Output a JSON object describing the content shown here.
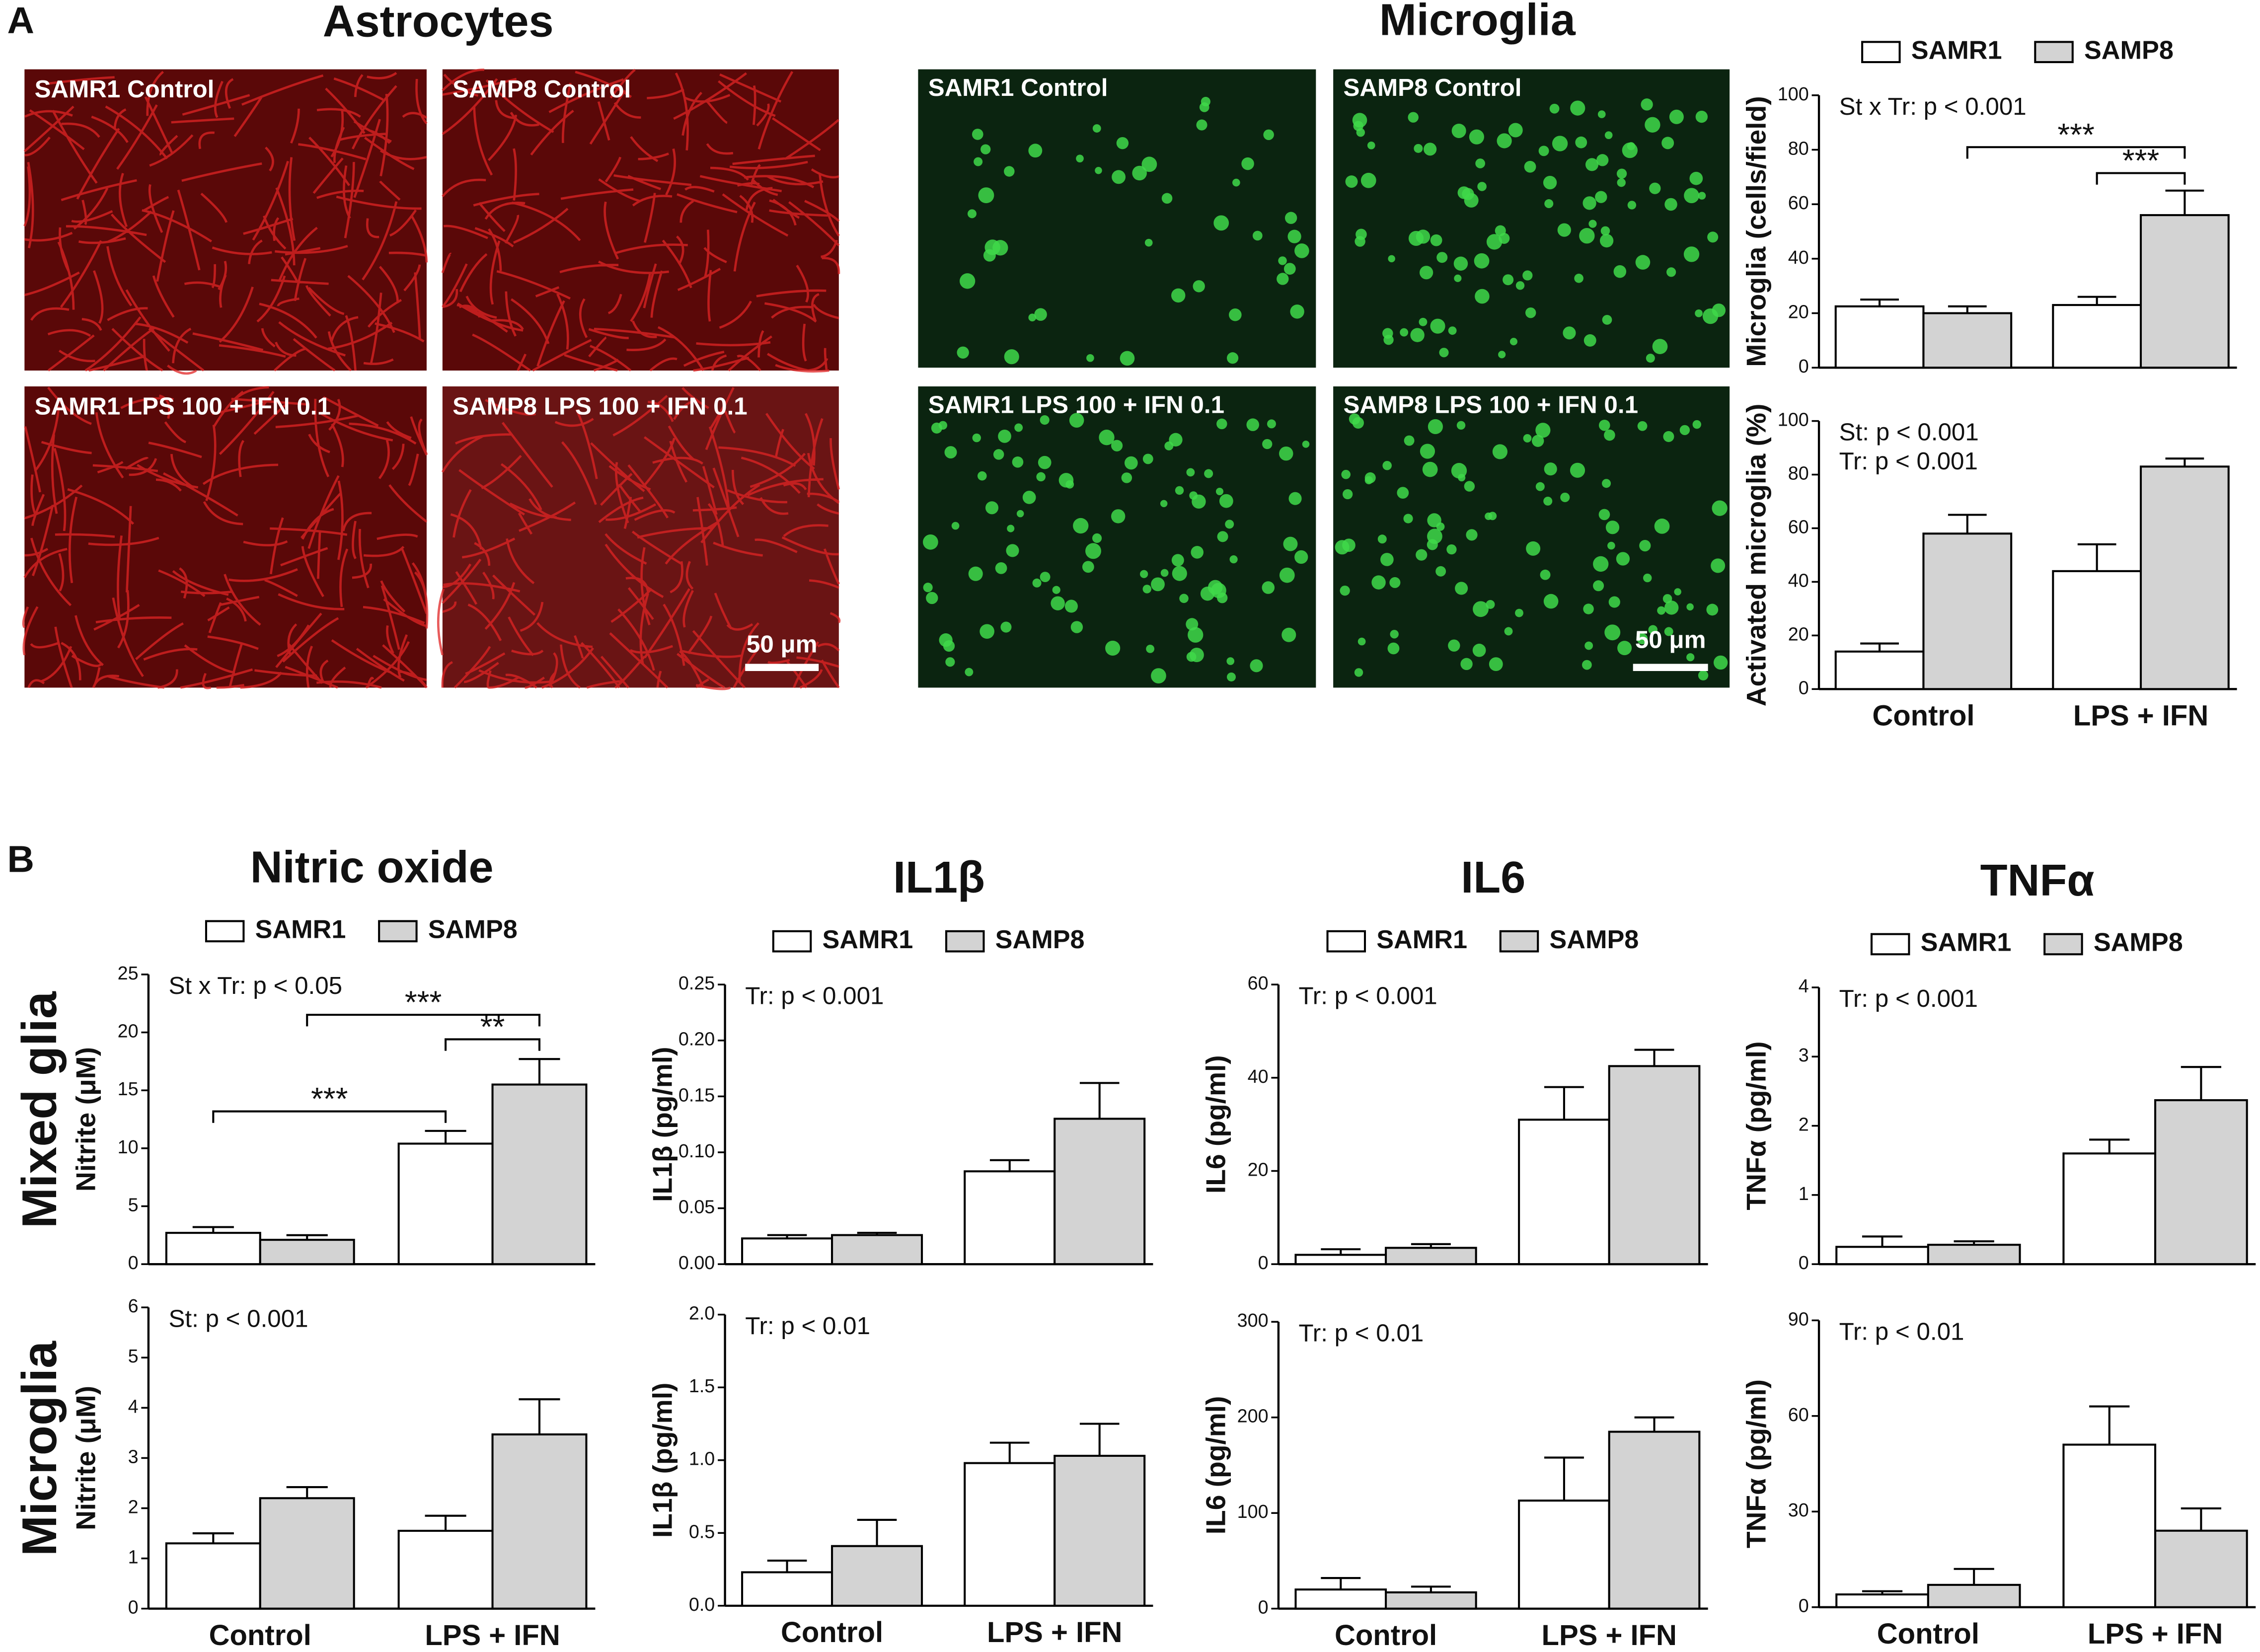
{
  "figure": {
    "panel_a": "A",
    "panel_b": "B",
    "astrocytes_title": "Astrocytes",
    "microglia_title": "Microglia",
    "row_labels": [
      "Mixed glia",
      "Microglia"
    ],
    "astrocyte_images": [
      "SAMR1 Control",
      "SAMP8 Control",
      "SAMR1 LPS 100 + IFN 0.1",
      "SAMP8 LPS 100 + IFN 0.1"
    ],
    "microglia_images": [
      "SAMR1 Control",
      "SAMP8 Control",
      "SAMR1 LPS 100 + IFN 0.1",
      "SAMP8 LPS 100 + IFN 0.1"
    ],
    "scale_bar": "50 μm"
  },
  "chart_data": [
    {
      "type": "bar",
      "ylabel": "Microglia (cells/field)",
      "legend": "top",
      "annotations": [
        "St x Tr: p < 0.001"
      ],
      "significance": [
        "***",
        "***"
      ],
      "categories": [
        null,
        null
      ],
      "series": [
        {
          "name": "SAMR1",
          "color": "#ffffff",
          "values": [
            22.5,
            23
          ],
          "errors": [
            2.5,
            3
          ]
        },
        {
          "name": "SAMP8",
          "color": "#d3d3d3",
          "values": [
            20,
            56
          ],
          "errors": [
            2.5,
            9
          ]
        }
      ],
      "ylim": [
        0,
        100
      ],
      "yticks": [
        0,
        20,
        40,
        60,
        80,
        100
      ]
    },
    {
      "type": "bar",
      "ylabel": "Activated microglia (%)",
      "annotations": [
        "St: p < 0.001",
        "Tr: p < 0.001"
      ],
      "categories": [
        "Control",
        "LPS + IFN"
      ],
      "series": [
        {
          "color": "#ffffff",
          "values": [
            14,
            44
          ],
          "errors": [
            3,
            10
          ]
        },
        {
          "color": "#d3d3d3",
          "values": [
            58,
            83
          ],
          "errors": [
            7,
            3
          ]
        }
      ],
      "ylim": [
        0,
        100
      ],
      "yticks": [
        0,
        20,
        40,
        60,
        80,
        100
      ]
    },
    {
      "type": "bar",
      "title": "Nitric oxide",
      "ylabel": "Nitrite (μM)",
      "legend": "top",
      "annotations": [
        "St x Tr: p < 0.05"
      ],
      "significance": [
        "***",
        "***",
        "**"
      ],
      "categories": [
        null,
        null
      ],
      "series": [
        {
          "name": "SAMR1",
          "color": "#ffffff",
          "values": [
            2.7,
            10.4
          ],
          "errors": [
            0.5,
            1.1
          ]
        },
        {
          "name": "SAMP8",
          "color": "#d3d3d3",
          "values": [
            2.1,
            15.5
          ],
          "errors": [
            0.4,
            2.2
          ]
        }
      ],
      "ylim": [
        0,
        25
      ],
      "yticks": [
        0,
        5,
        10,
        15,
        20,
        25
      ]
    },
    {
      "type": "bar",
      "title": "IL1β",
      "ylabel": "IL1β (pg/ml)",
      "legend": "top",
      "annotations": [
        "Tr: p < 0.001"
      ],
      "categories": [
        null,
        null
      ],
      "series": [
        {
          "name": "SAMR1",
          "color": "#ffffff",
          "values": [
            0.023,
            0.083
          ],
          "errors": [
            0.003,
            0.01
          ]
        },
        {
          "name": "SAMP8",
          "color": "#d3d3d3",
          "values": [
            0.026,
            0.13
          ],
          "errors": [
            0.002,
            0.032
          ]
        }
      ],
      "ylim": [
        0,
        0.25
      ],
      "yticks": [
        {
          "value": 0,
          "label": "0.00"
        },
        0.05,
        {
          "value": 0.1,
          "label": "0.10"
        },
        0.15,
        {
          "value": 0.2,
          "label": "0.20"
        },
        0.25
      ]
    },
    {
      "type": "bar",
      "title": "IL6",
      "ylabel": "IL6 (pg/ml)",
      "legend": "top",
      "annotations": [
        "Tr: p < 0.001"
      ],
      "categories": [
        null,
        null
      ],
      "series": [
        {
          "name": "SAMR1",
          "color": "#ffffff",
          "values": [
            2,
            31
          ],
          "errors": [
            1.2,
            7
          ]
        },
        {
          "name": "SAMP8",
          "color": "#d3d3d3",
          "values": [
            3.5,
            42.5
          ],
          "errors": [
            0.8,
            3.5
          ]
        }
      ],
      "ylim": [
        0,
        60
      ],
      "yticks": [
        0,
        20,
        40,
        60
      ]
    },
    {
      "type": "bar",
      "title": "TNFα",
      "ylabel": "TNFα (pg/ml)",
      "legend": "top",
      "annotations": [
        "Tr: p < 0.001"
      ],
      "categories": [
        null,
        null
      ],
      "series": [
        {
          "name": "SAMR1",
          "color": "#ffffff",
          "values": [
            0.25,
            1.6
          ],
          "errors": [
            0.15,
            0.2
          ]
        },
        {
          "name": "SAMP8",
          "color": "#d3d3d3",
          "values": [
            0.28,
            2.37
          ],
          "errors": [
            0.05,
            0.48
          ]
        }
      ],
      "ylim": [
        0,
        4
      ],
      "yticks": [
        0,
        1,
        2,
        3,
        4
      ]
    },
    {
      "type": "bar",
      "ylabel": "Nitrite (μM)",
      "annotations": [
        "St: p < 0.001"
      ],
      "categories": [
        "Control",
        "LPS + IFN"
      ],
      "series": [
        {
          "color": "#ffffff",
          "values": [
            1.3,
            1.55
          ],
          "errors": [
            0.2,
            0.3
          ]
        },
        {
          "color": "#d3d3d3",
          "values": [
            2.2,
            3.47
          ],
          "errors": [
            0.22,
            0.7
          ]
        }
      ],
      "ylim": [
        0,
        6
      ],
      "yticks": [
        0,
        1,
        2,
        3,
        4,
        5,
        6
      ]
    },
    {
      "type": "bar",
      "ylabel": "IL1β (pg/ml)",
      "annotations": [
        "Tr: p < 0.01"
      ],
      "categories": [
        "Control",
        "LPS + IFN"
      ],
      "series": [
        {
          "color": "#ffffff",
          "values": [
            0.23,
            0.98
          ],
          "errors": [
            0.08,
            0.14
          ]
        },
        {
          "color": "#d3d3d3",
          "values": [
            0.41,
            1.03
          ],
          "errors": [
            0.18,
            0.22
          ]
        }
      ],
      "ylim": [
        0,
        2
      ],
      "yticks": [
        {
          "value": 0,
          "label": "0.0"
        },
        0.5,
        {
          "value": 1,
          "label": "1.0"
        },
        1.5,
        {
          "value": 2,
          "label": "2.0"
        }
      ]
    },
    {
      "type": "bar",
      "ylabel": "IL6 (pg/ml)",
      "annotations": [
        "Tr: p < 0.01"
      ],
      "categories": [
        "Control",
        "LPS + IFN"
      ],
      "series": [
        {
          "color": "#ffffff",
          "values": [
            20,
            113
          ],
          "errors": [
            12,
            45
          ]
        },
        {
          "color": "#d3d3d3",
          "values": [
            17,
            185
          ],
          "errors": [
            6,
            15
          ]
        }
      ],
      "ylim": [
        0,
        300
      ],
      "yticks": [
        0,
        100,
        200,
        300
      ]
    },
    {
      "type": "bar",
      "ylabel": "TNFα (pg/ml)",
      "annotations": [
        "Tr: p < 0.01"
      ],
      "categories": [
        "Control",
        "LPS + IFN"
      ],
      "series": [
        {
          "color": "#ffffff",
          "values": [
            4,
            51
          ],
          "errors": [
            1,
            12
          ]
        },
        {
          "color": "#d3d3d3",
          "values": [
            7,
            24
          ],
          "errors": [
            5,
            7
          ]
        }
      ],
      "ylim": [
        0,
        90
      ],
      "yticks": [
        0,
        30,
        60,
        90
      ]
    }
  ]
}
